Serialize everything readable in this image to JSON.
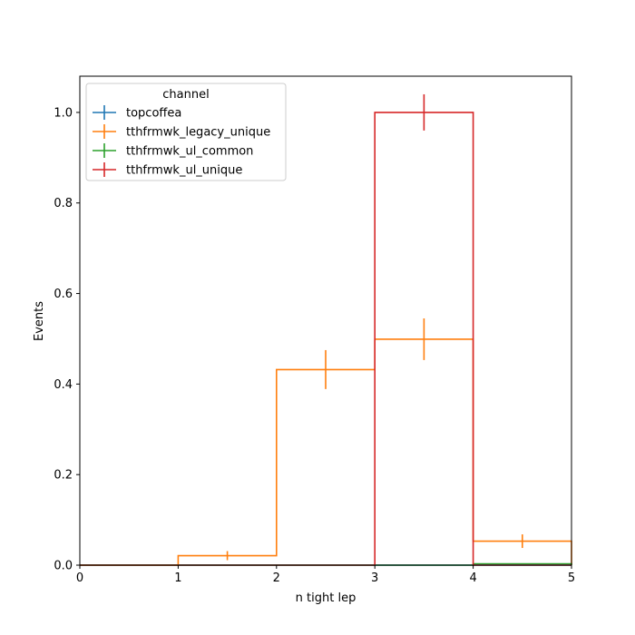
{
  "chart_data": {
    "type": "step-histogram",
    "xlabel": "n tight lep",
    "ylabel": "Events",
    "xlim": [
      0,
      5
    ],
    "ylim": [
      0,
      1.08
    ],
    "bin_edges": [
      0,
      1,
      2,
      3,
      4,
      5
    ],
    "xticks": [
      0,
      1,
      2,
      3,
      4,
      5
    ],
    "yticks": [
      0.0,
      0.2,
      0.4,
      0.6,
      0.8,
      1.0
    ],
    "xtick_labels": [
      "0",
      "1",
      "2",
      "3",
      "4",
      "5"
    ],
    "ytick_labels": [
      "0.0",
      "0.2",
      "0.4",
      "0.6",
      "0.8",
      "1.0"
    ],
    "legend": {
      "title": "channel",
      "placement": "upper-left"
    },
    "series": [
      {
        "name": "topcoffea",
        "color": "#1f77b4",
        "values": [
          0,
          0,
          0,
          0,
          0
        ],
        "errors": [
          0,
          0,
          0,
          0,
          0
        ]
      },
      {
        "name": "tthfrmwk_legacy_unique",
        "color": "#ff7f0e",
        "values": [
          0,
          0.021,
          0.432,
          0.499,
          0.053
        ],
        "errors": [
          0,
          0.01,
          0.043,
          0.046,
          0.015
        ]
      },
      {
        "name": "tthfrmwk_ul_common",
        "color": "#2ca02c",
        "values": [
          0,
          0,
          0,
          0,
          0.003
        ],
        "errors": [
          0,
          0,
          0,
          0,
          0
        ]
      },
      {
        "name": "tthfrmwk_ul_unique",
        "color": "#d62728",
        "values": [
          0,
          0,
          0,
          1.0,
          0
        ],
        "errors": [
          0,
          0,
          0,
          0.04,
          0
        ]
      }
    ]
  }
}
